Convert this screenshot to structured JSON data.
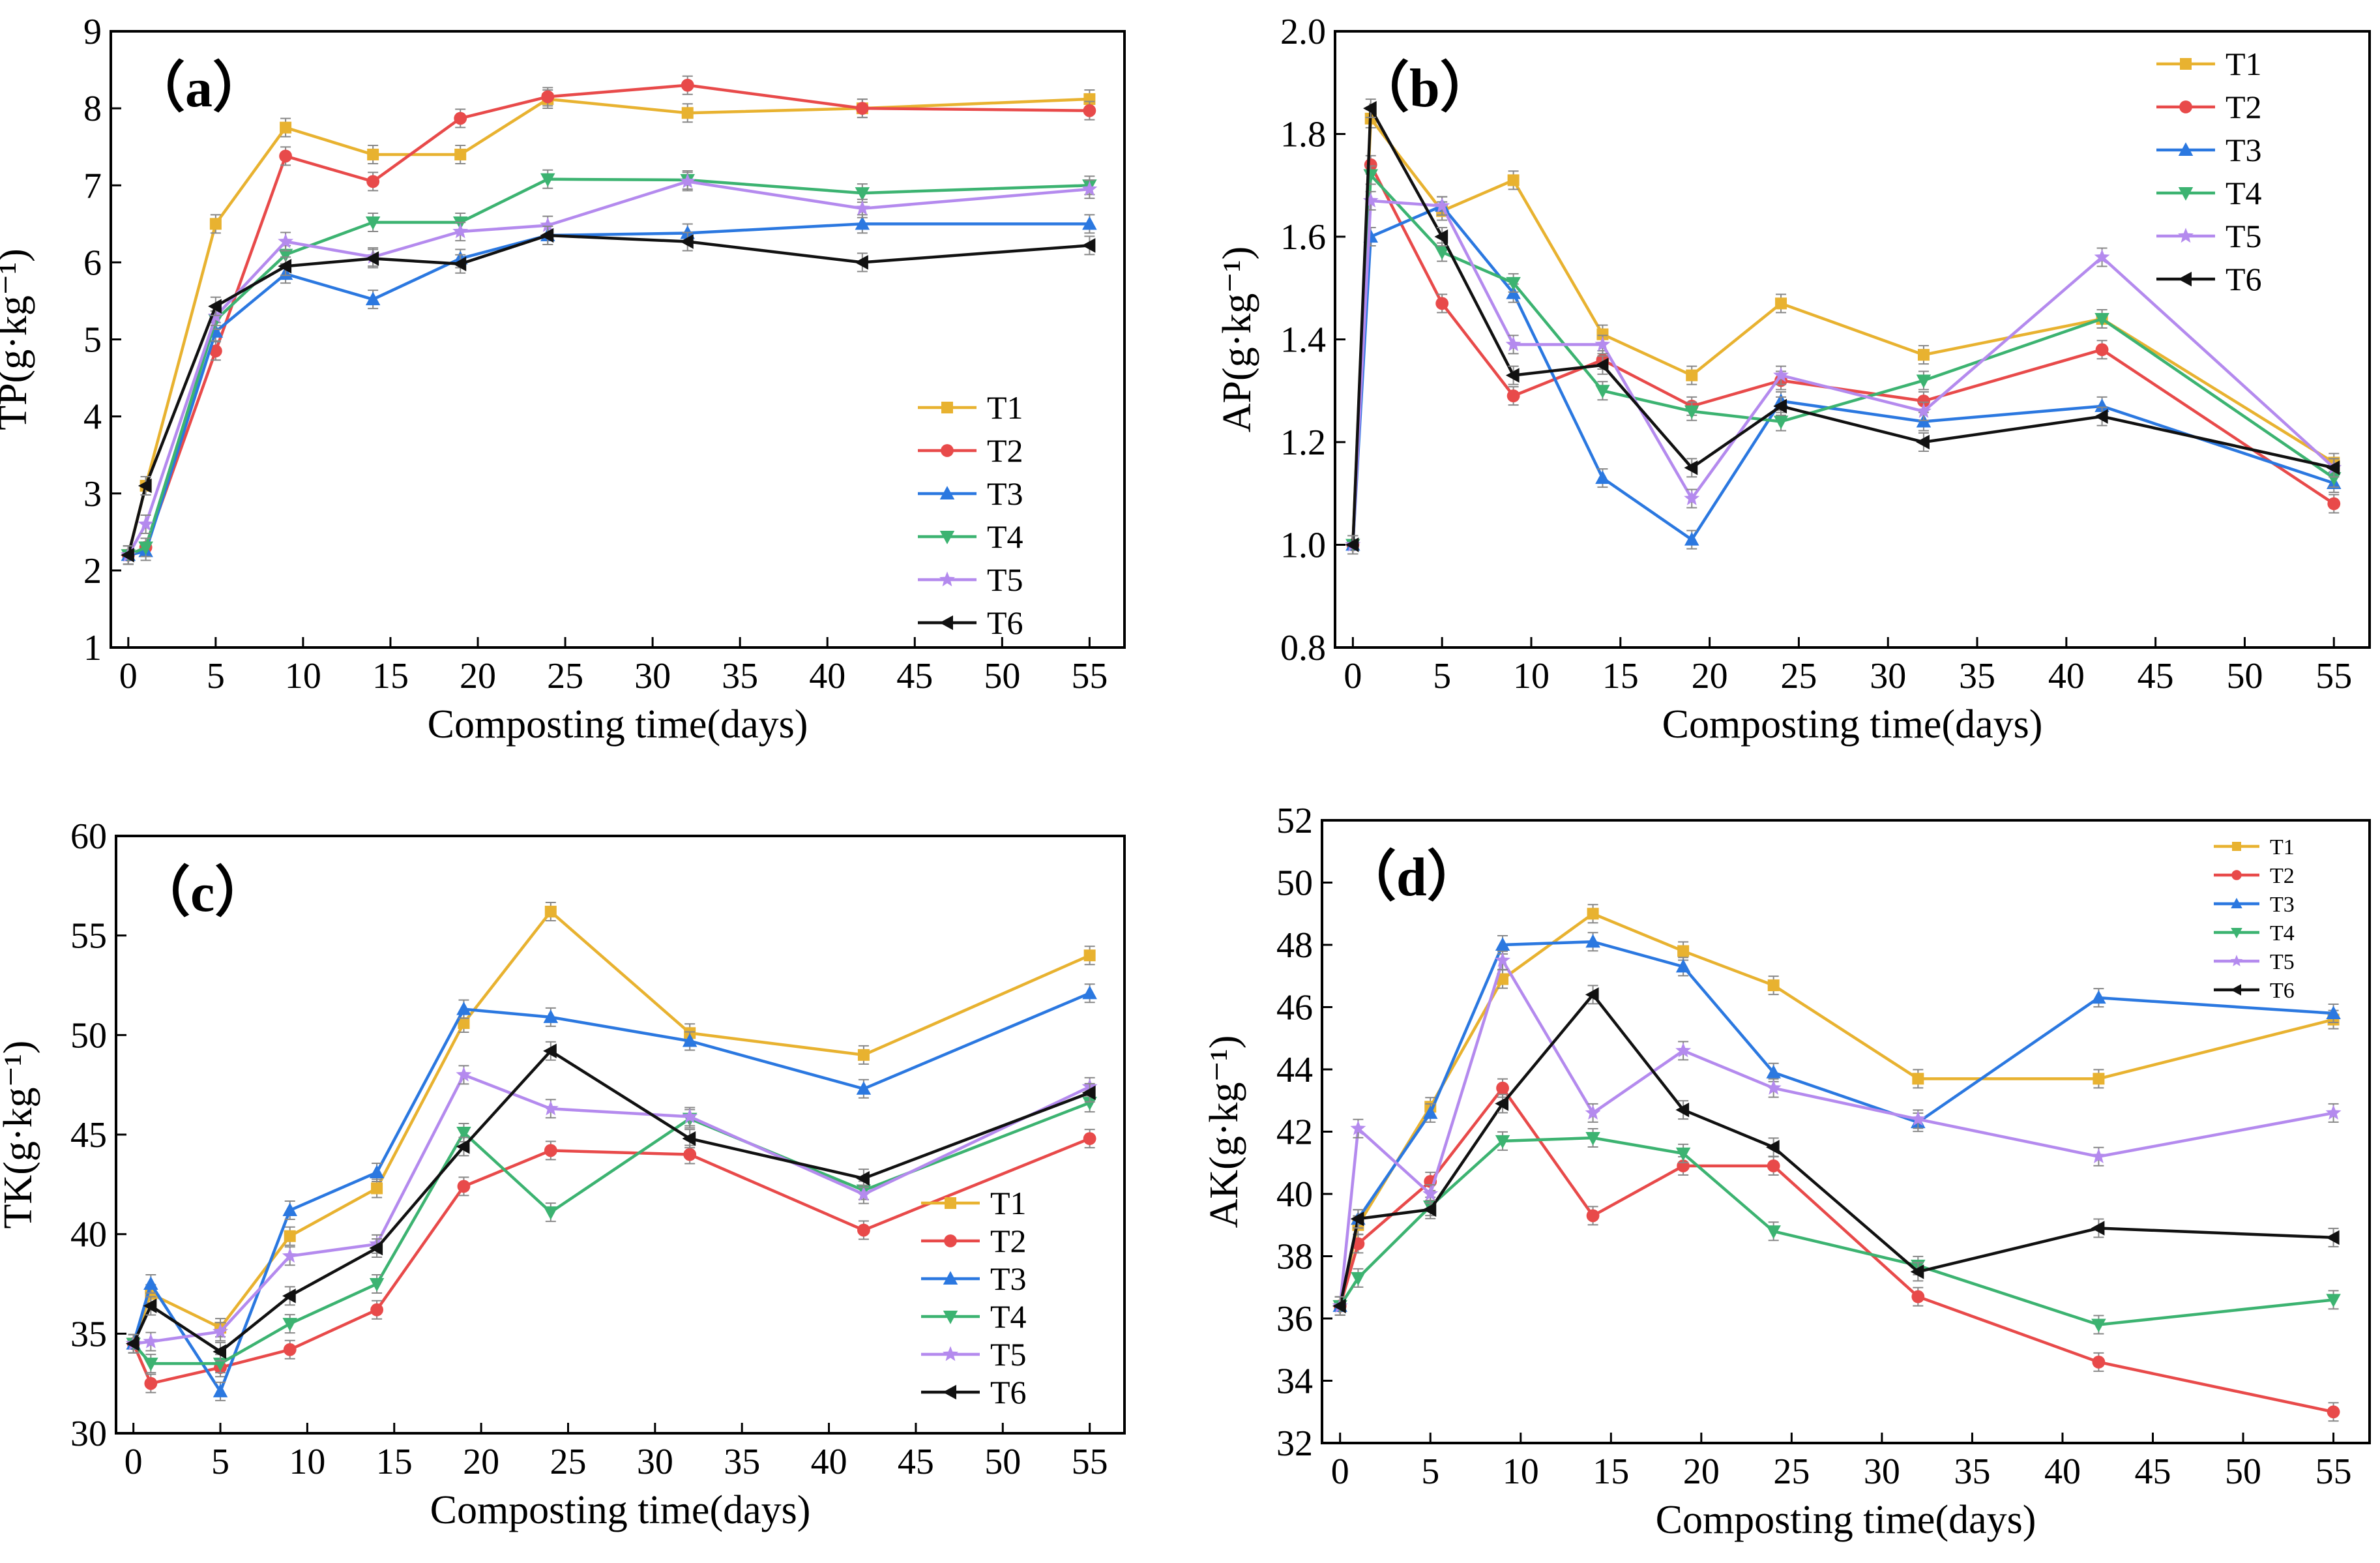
{
  "figure": {
    "series_names": [
      "T1",
      "T2",
      "T3",
      "T4",
      "T5",
      "T6"
    ],
    "series_colors": [
      "#E8B230",
      "#E84A4A",
      "#2B78E0",
      "#3CB371",
      "#B48AEE",
      "#111111"
    ],
    "series_markers": [
      "square",
      "circle",
      "triangle-up",
      "triangle-down",
      "star",
      "triangle-left"
    ]
  },
  "chart_data": [
    {
      "type": "line",
      "panel_label": "（a）",
      "xlabel": "Composting time(days)",
      "ylabel": "TP(g·kg⁻¹)",
      "xlim": [
        -1,
        57
      ],
      "ylim": [
        1,
        9
      ],
      "xticks": [
        0,
        5,
        10,
        15,
        20,
        25,
        30,
        35,
        40,
        45,
        50,
        55
      ],
      "yticks": [
        1,
        2,
        3,
        4,
        5,
        6,
        7,
        8,
        9
      ],
      "x": [
        0,
        1,
        5,
        9,
        14,
        19,
        24,
        32,
        42,
        55
      ],
      "legend_position": "bottom-right",
      "series": [
        {
          "name": "T1",
          "values": [
            2.2,
            3.1,
            6.5,
            7.75,
            7.4,
            7.4,
            8.12,
            7.94,
            8.0,
            8.12
          ]
        },
        {
          "name": "T2",
          "values": [
            2.2,
            2.3,
            4.85,
            7.38,
            7.05,
            7.87,
            8.15,
            8.3,
            8.0,
            7.97
          ]
        },
        {
          "name": "T3",
          "values": [
            2.2,
            2.25,
            5.1,
            5.85,
            5.52,
            6.05,
            6.35,
            6.38,
            6.5,
            6.5
          ]
        },
        {
          "name": "T4",
          "values": [
            2.2,
            2.3,
            5.25,
            6.1,
            6.52,
            6.52,
            7.08,
            7.07,
            6.9,
            7.0
          ]
        },
        {
          "name": "T5",
          "values": [
            2.2,
            2.6,
            5.3,
            6.27,
            6.07,
            6.4,
            6.48,
            7.05,
            6.7,
            6.95
          ]
        },
        {
          "name": "T6",
          "values": [
            2.2,
            3.1,
            5.43,
            5.95,
            6.05,
            5.98,
            6.35,
            6.27,
            6.0,
            6.22
          ]
        }
      ]
    },
    {
      "type": "line",
      "panel_label": "（b）",
      "xlabel": "Composting time(days)",
      "ylabel": "AP(g·kg⁻¹)",
      "xlim": [
        -1,
        57
      ],
      "ylim": [
        0.8,
        2.0
      ],
      "xticks": [
        0,
        5,
        10,
        15,
        20,
        25,
        30,
        35,
        40,
        45,
        50,
        55
      ],
      "yticks": [
        0.8,
        1.0,
        1.2,
        1.4,
        1.6,
        1.8,
        2.0
      ],
      "x": [
        0,
        1,
        5,
        9,
        14,
        19,
        24,
        32,
        42,
        55
      ],
      "legend_position": "top-right",
      "series": [
        {
          "name": "T1",
          "values": [
            1.0,
            1.83,
            1.65,
            1.71,
            1.41,
            1.33,
            1.47,
            1.37,
            1.44,
            1.16
          ]
        },
        {
          "name": "T2",
          "values": [
            1.0,
            1.74,
            1.47,
            1.29,
            1.36,
            1.27,
            1.32,
            1.28,
            1.38,
            1.08
          ]
        },
        {
          "name": "T3",
          "values": [
            1.0,
            1.6,
            1.66,
            1.49,
            1.13,
            1.01,
            1.28,
            1.24,
            1.27,
            1.12
          ]
        },
        {
          "name": "T4",
          "values": [
            1.0,
            1.72,
            1.57,
            1.51,
            1.3,
            1.26,
            1.24,
            1.32,
            1.44,
            1.13
          ]
        },
        {
          "name": "T5",
          "values": [
            1.0,
            1.67,
            1.66,
            1.39,
            1.39,
            1.09,
            1.33,
            1.26,
            1.56,
            1.15
          ]
        },
        {
          "name": "T6",
          "values": [
            1.0,
            1.85,
            1.6,
            1.33,
            1.35,
            1.15,
            1.27,
            1.2,
            1.25,
            1.15
          ]
        }
      ]
    },
    {
      "type": "line",
      "panel_label": "（c）",
      "xlabel": "Composting time(days)",
      "ylabel": "TK(g·kg⁻¹)",
      "xlim": [
        -1,
        57
      ],
      "ylim": [
        30,
        60
      ],
      "xticks": [
        0,
        5,
        10,
        15,
        20,
        25,
        30,
        35,
        40,
        45,
        50,
        55
      ],
      "yticks": [
        30,
        35,
        40,
        45,
        50,
        55,
        60
      ],
      "x": [
        0,
        1,
        5,
        9,
        14,
        19,
        24,
        32,
        42,
        55
      ],
      "legend_position": "bottom-right",
      "series": [
        {
          "name": "T1",
          "values": [
            34.5,
            37.0,
            35.3,
            39.9,
            42.3,
            50.6,
            56.2,
            50.1,
            49.0,
            54.0
          ]
        },
        {
          "name": "T2",
          "values": [
            34.5,
            32.5,
            33.3,
            34.2,
            36.2,
            42.4,
            44.2,
            44.0,
            40.2,
            44.8
          ]
        },
        {
          "name": "T3",
          "values": [
            34.5,
            37.5,
            32.1,
            41.2,
            43.1,
            51.3,
            50.9,
            49.7,
            47.3,
            52.1
          ]
        },
        {
          "name": "T4",
          "values": [
            34.5,
            33.5,
            33.5,
            35.5,
            37.5,
            45.1,
            41.1,
            45.8,
            42.2,
            46.6
          ]
        },
        {
          "name": "T5",
          "values": [
            34.5,
            34.6,
            35.1,
            38.9,
            39.5,
            48.0,
            46.3,
            45.9,
            42.0,
            47.4
          ]
        },
        {
          "name": "T6",
          "values": [
            34.5,
            36.4,
            34.1,
            36.9,
            39.3,
            44.4,
            49.2,
            44.8,
            42.8,
            47.1
          ]
        }
      ]
    },
    {
      "type": "line",
      "panel_label": "（d）",
      "xlabel": "Composting time(days)",
      "ylabel": "AK(g·kg⁻¹)",
      "xlim": [
        -1,
        57
      ],
      "ylim": [
        32,
        52
      ],
      "xticks": [
        0,
        5,
        10,
        15,
        20,
        25,
        30,
        35,
        40,
        45,
        50,
        55
      ],
      "yticks": [
        32,
        34,
        36,
        38,
        40,
        42,
        44,
        46,
        48,
        50,
        52
      ],
      "x": [
        0,
        1,
        5,
        9,
        14,
        19,
        24,
        32,
        42,
        55
      ],
      "legend_position": "top-right",
      "series": [
        {
          "name": "T1",
          "values": [
            36.4,
            39.0,
            42.8,
            46.9,
            49.0,
            47.8,
            46.7,
            43.7,
            43.7,
            45.6
          ]
        },
        {
          "name": "T2",
          "values": [
            36.4,
            38.4,
            40.4,
            43.4,
            39.3,
            40.9,
            40.9,
            36.7,
            34.6,
            33.0
          ]
        },
        {
          "name": "T3",
          "values": [
            36.4,
            39.2,
            42.6,
            48.0,
            48.1,
            47.3,
            43.9,
            42.3,
            46.3,
            45.8
          ]
        },
        {
          "name": "T4",
          "values": [
            36.4,
            37.3,
            39.6,
            41.7,
            41.8,
            41.3,
            38.8,
            37.7,
            35.8,
            36.6
          ]
        },
        {
          "name": "T5",
          "values": [
            36.4,
            42.1,
            40.0,
            47.5,
            42.6,
            44.6,
            43.4,
            42.4,
            41.2,
            42.6
          ]
        },
        {
          "name": "T6",
          "values": [
            36.4,
            39.2,
            39.5,
            42.9,
            46.4,
            42.7,
            41.5,
            37.5,
            38.9,
            38.6
          ]
        }
      ]
    }
  ]
}
